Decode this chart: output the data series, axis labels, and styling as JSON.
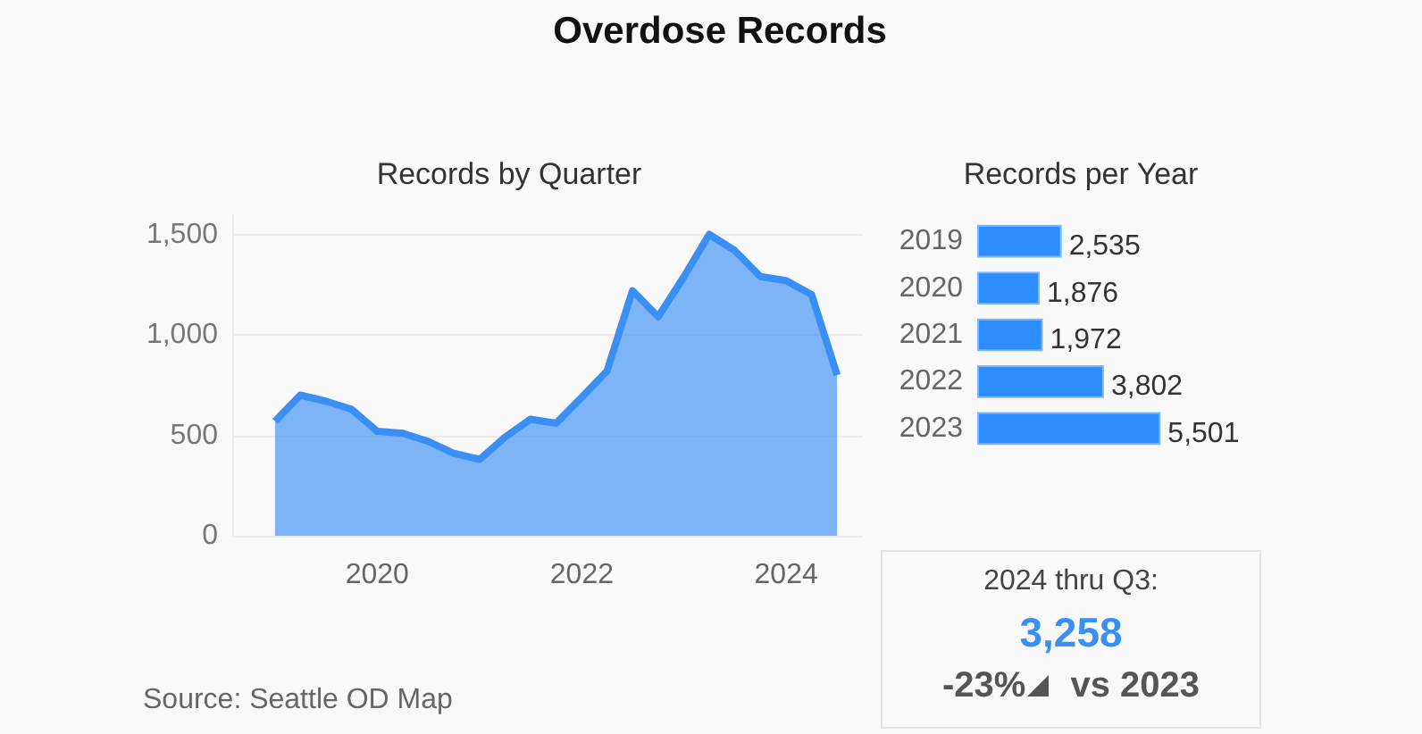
{
  "chart_data": [
    {
      "type": "area",
      "title": "Overdose Records",
      "subtitle": "Records by Quarter",
      "x": [
        "2019-01",
        "2019-04",
        "2019-07",
        "2019-10",
        "2020-01",
        "2020-04",
        "2020-07",
        "2020-10",
        "2021-01",
        "2021-04",
        "2021-07",
        "2021-10",
        "2022-01",
        "2022-04",
        "2022-07",
        "2022-10",
        "2023-01",
        "2023-04",
        "2023-07",
        "2023-10",
        "2024-01",
        "2024-04",
        "2024-07"
      ],
      "values": [
        570,
        700,
        670,
        630,
        520,
        510,
        470,
        410,
        380,
        490,
        580,
        560,
        690,
        820,
        1220,
        1090,
        1290,
        1500,
        1420,
        1290,
        1270,
        1200,
        800
      ],
      "color": "#3a8ff5",
      "xlim": [
        "2018-08",
        "2024-10"
      ],
      "xticks": [
        "2020",
        "2022",
        "2024"
      ],
      "ylim": [
        0,
        1600
      ],
      "yticks": [
        0,
        500,
        {
          "value": 1000,
          "label": "1,000"
        },
        {
          "value": 1500,
          "label": "1,500"
        }
      ],
      "grid": "y",
      "annotations": [
        "Source: Seattle OD Map"
      ]
    },
    {
      "type": "bar",
      "orientation": "horizontal",
      "subtitle": "Records per Year",
      "categories": [
        "2019",
        "2020",
        "2021",
        "2022",
        "2023"
      ],
      "values": [
        2535,
        1876,
        1972,
        3802,
        5501
      ],
      "color": "#2d8cff",
      "value_labels": [
        "2,535",
        "1,876",
        "1,972",
        "3,802",
        "5,501"
      ]
    },
    {
      "type": "other",
      "title": "2024 thru Q3:",
      "annotations": [
        "3,258",
        "-23%",
        "vs 2023"
      ]
    }
  ]
}
